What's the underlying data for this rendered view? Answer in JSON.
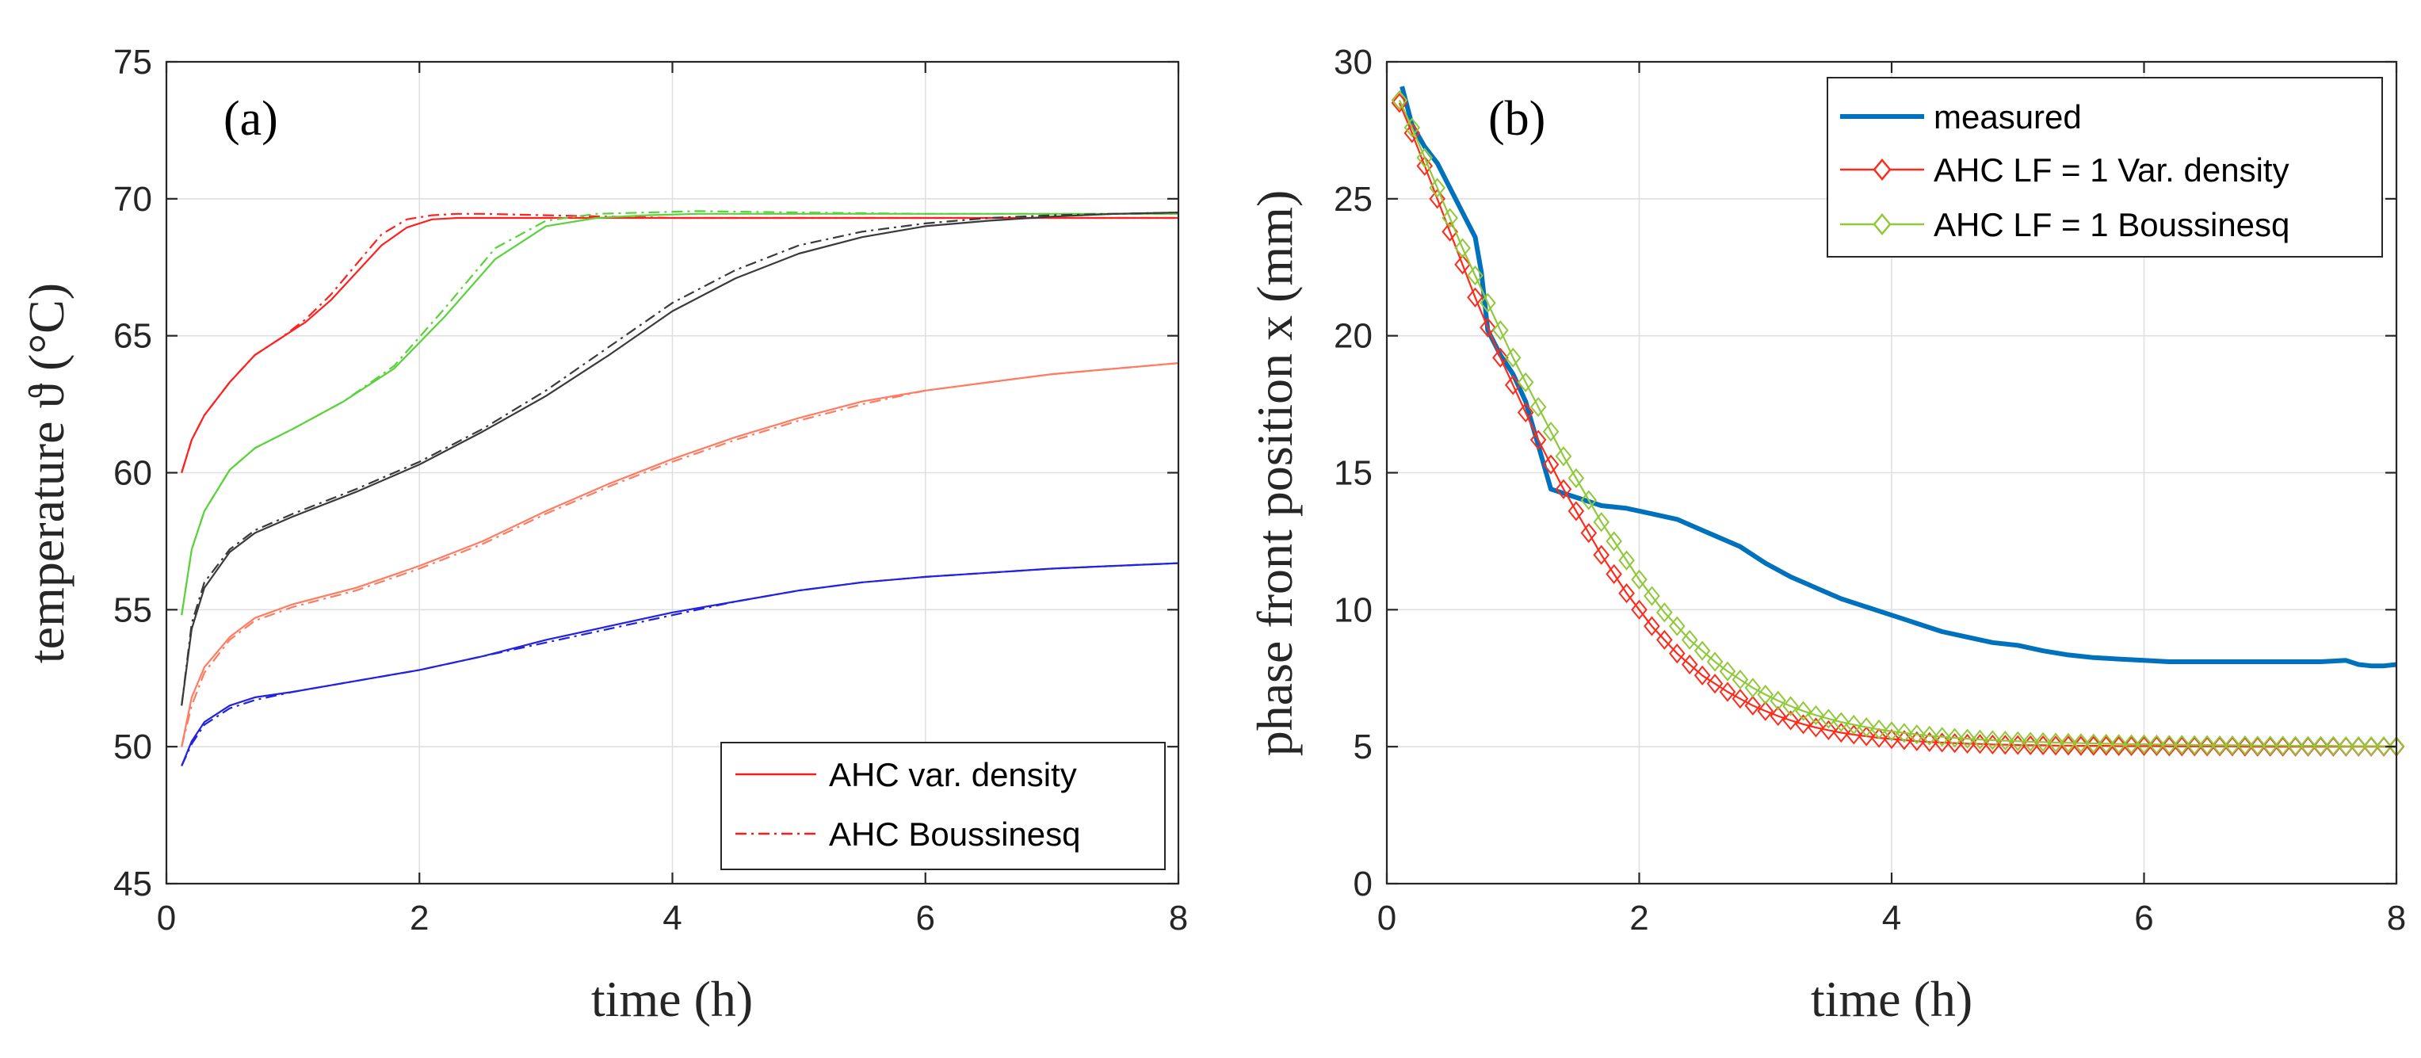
{
  "chart_data": [
    {
      "type": "line",
      "panel_label": "(a)",
      "xlabel": "time (h)",
      "ylabel": "temperature ϑ (°C)",
      "xlim": [
        0,
        8
      ],
      "ylim": [
        45,
        75
      ],
      "xticks": [
        0,
        2,
        4,
        6,
        8
      ],
      "yticks": [
        45,
        50,
        55,
        60,
        65,
        70,
        75
      ],
      "grid": true,
      "legend_position": "bottom-right",
      "legend": [
        {
          "label": "AHC var. density",
          "color": "#ff1a1a",
          "style": "solid"
        },
        {
          "label": "AHC Boussinesq",
          "color": "#ff1a1a",
          "style": "dashdot"
        }
      ],
      "series": [
        {
          "name": "red var. density",
          "color": "#ff2020",
          "style": "solid",
          "x": [
            0.12,
            0.2,
            0.3,
            0.5,
            0.7,
            0.9,
            1.1,
            1.3,
            1.5,
            1.7,
            1.9,
            2.1,
            2.3,
            2.5,
            3,
            4,
            5,
            6,
            7,
            8
          ],
          "y": [
            60,
            61.2,
            62.1,
            63.3,
            64.3,
            64.9,
            65.5,
            66.3,
            67.3,
            68.3,
            68.95,
            69.25,
            69.3,
            69.3,
            69.3,
            69.3,
            69.3,
            69.3,
            69.3,
            69.3
          ]
        },
        {
          "name": "red Boussinesq",
          "color": "#ff2020",
          "style": "dashdot",
          "x": [
            0.12,
            0.2,
            0.3,
            0.5,
            0.7,
            0.9,
            1.1,
            1.3,
            1.5,
            1.7,
            1.9,
            2.1,
            2.3,
            2.5,
            3,
            4,
            5,
            6,
            7,
            8
          ],
          "y": [
            60,
            61.2,
            62.1,
            63.3,
            64.3,
            64.9,
            65.6,
            66.5,
            67.6,
            68.7,
            69.25,
            69.4,
            69.45,
            69.45,
            69.4,
            69.3,
            69.3,
            69.3,
            69.3,
            69.3
          ]
        },
        {
          "name": "green var. density",
          "color": "#5ad23c",
          "style": "solid",
          "x": [
            0.12,
            0.2,
            0.3,
            0.5,
            0.7,
            1,
            1.4,
            1.8,
            2.2,
            2.6,
            3,
            3.4,
            3.8,
            4.2,
            5,
            6,
            7,
            8
          ],
          "y": [
            54.8,
            57.2,
            58.6,
            60.1,
            60.9,
            61.6,
            62.6,
            63.8,
            65.7,
            67.8,
            69,
            69.3,
            69.4,
            69.45,
            69.45,
            69.45,
            69.45,
            69.45
          ]
        },
        {
          "name": "green Boussinesq",
          "color": "#5ad23c",
          "style": "dashdot",
          "x": [
            0.12,
            0.2,
            0.3,
            0.5,
            0.7,
            1,
            1.4,
            1.8,
            2.2,
            2.6,
            3,
            3.4,
            3.8,
            4.2,
            5,
            6,
            7,
            8
          ],
          "y": [
            54.8,
            57.2,
            58.6,
            60.1,
            60.9,
            61.6,
            62.6,
            63.9,
            66,
            68.2,
            69.2,
            69.45,
            69.5,
            69.55,
            69.5,
            69.45,
            69.45,
            69.45
          ]
        },
        {
          "name": "black var. density",
          "color": "#3a3a3a",
          "style": "solid",
          "x": [
            0.12,
            0.2,
            0.3,
            0.5,
            0.7,
            1,
            1.5,
            2,
            2.5,
            3,
            3.5,
            4,
            4.5,
            5,
            5.5,
            6,
            6.5,
            7,
            7.5,
            8
          ],
          "y": [
            51.5,
            54.3,
            55.8,
            57.1,
            57.8,
            58.4,
            59.3,
            60.3,
            61.5,
            62.8,
            64.3,
            65.9,
            67.1,
            68,
            68.6,
            69,
            69.2,
            69.35,
            69.45,
            69.5
          ]
        },
        {
          "name": "black Boussinesq",
          "color": "#3a3a3a",
          "style": "dashdot",
          "x": [
            0.12,
            0.2,
            0.3,
            0.5,
            0.7,
            1,
            1.5,
            2,
            2.5,
            3,
            3.5,
            4,
            4.5,
            5,
            5.5,
            6,
            6.5,
            7,
            7.5,
            8
          ],
          "y": [
            51.5,
            54.5,
            56,
            57.2,
            57.9,
            58.5,
            59.4,
            60.4,
            61.6,
            63,
            64.6,
            66.2,
            67.4,
            68.3,
            68.8,
            69.1,
            69.3,
            69.4,
            69.45,
            69.5
          ]
        },
        {
          "name": "salmon var. density",
          "color": "#ff7b61",
          "style": "solid",
          "x": [
            0.12,
            0.2,
            0.3,
            0.5,
            0.7,
            1,
            1.5,
            2,
            2.5,
            3,
            3.5,
            4,
            4.5,
            5,
            5.5,
            6,
            6.5,
            7,
            7.5,
            8
          ],
          "y": [
            50,
            51.8,
            52.9,
            54,
            54.7,
            55.2,
            55.8,
            56.6,
            57.5,
            58.6,
            59.6,
            60.5,
            61.3,
            62,
            62.6,
            63,
            63.3,
            63.6,
            63.8,
            64
          ]
        },
        {
          "name": "salmon Boussinesq",
          "color": "#ff7b61",
          "style": "dashdot",
          "x": [
            0.12,
            0.2,
            0.3,
            0.5,
            0.7,
            1,
            1.5,
            2,
            2.5,
            3,
            3.5,
            4,
            4.5,
            5,
            5.5,
            6,
            6.5,
            7,
            7.5,
            8
          ],
          "y": [
            50,
            51.5,
            52.7,
            53.9,
            54.6,
            55.1,
            55.7,
            56.5,
            57.4,
            58.5,
            59.5,
            60.4,
            61.2,
            61.9,
            62.5,
            63,
            63.3,
            63.6,
            63.8,
            64
          ]
        },
        {
          "name": "blue var. density",
          "color": "#2222e0",
          "style": "solid",
          "x": [
            0.12,
            0.2,
            0.3,
            0.5,
            0.7,
            1,
            1.5,
            2,
            2.5,
            3,
            3.5,
            4,
            4.5,
            5,
            5.5,
            6,
            6.5,
            7,
            7.5,
            8
          ],
          "y": [
            49.3,
            50.2,
            50.9,
            51.5,
            51.8,
            52,
            52.4,
            52.8,
            53.3,
            53.9,
            54.4,
            54.9,
            55.3,
            55.7,
            56,
            56.2,
            56.35,
            56.5,
            56.6,
            56.7
          ]
        },
        {
          "name": "blue Boussinesq",
          "color": "#2222e0",
          "style": "dashdot",
          "x": [
            0.12,
            0.2,
            0.3,
            0.5,
            0.7,
            1,
            1.5,
            2,
            2.5,
            3,
            3.5,
            4,
            4.5,
            5,
            5.5,
            6,
            6.5,
            7,
            7.5,
            8
          ],
          "y": [
            49.3,
            50.1,
            50.8,
            51.4,
            51.7,
            52,
            52.4,
            52.8,
            53.3,
            53.8,
            54.3,
            54.8,
            55.3,
            55.7,
            56,
            56.2,
            56.35,
            56.5,
            56.6,
            56.7
          ]
        }
      ]
    },
    {
      "type": "line",
      "panel_label": "(b)",
      "xlabel": "time (h)",
      "ylabel": "phase front position x (mm)",
      "xlim": [
        0,
        8
      ],
      "ylim": [
        0,
        30
      ],
      "xticks": [
        0,
        2,
        4,
        6,
        8
      ],
      "yticks": [
        0,
        5,
        10,
        15,
        20,
        25,
        30
      ],
      "grid": true,
      "legend_position": "top-right",
      "legend": [
        {
          "label": "measured",
          "color": "#0072bd",
          "style": "solid-thick"
        },
        {
          "label": "AHC LF = 1 Var. density",
          "color": "#ff2a1a",
          "style": "diamond"
        },
        {
          "label": "AHC LF = 1 Boussinesq",
          "color": "#8fc93a",
          "style": "diamond"
        }
      ],
      "series": [
        {
          "name": "measured",
          "color": "#0072bd",
          "style": "solid-thick",
          "x": [
            0.12,
            0.2,
            0.3,
            0.4,
            0.5,
            0.6,
            0.7,
            0.75,
            0.8,
            0.9,
            1,
            1.1,
            1.2,
            1.3,
            1.5,
            1.7,
            1.9,
            2.1,
            2.3,
            2.5,
            2.7,
            2.8,
            3,
            3.2,
            3.4,
            3.6,
            3.8,
            4,
            4.2,
            4.4,
            4.6,
            4.8,
            5,
            5.2,
            5.4,
            5.6,
            5.8,
            6,
            6.2,
            6.4,
            6.6,
            6.8,
            7,
            7.2,
            7.4,
            7.6,
            7.7,
            7.8,
            7.9,
            8
          ],
          "y": [
            29.1,
            27.7,
            26.9,
            26.3,
            25.4,
            24.5,
            23.6,
            22.3,
            20.2,
            19.3,
            18.6,
            17.6,
            16,
            14.4,
            14.1,
            13.8,
            13.7,
            13.5,
            13.3,
            12.9,
            12.5,
            12.3,
            11.7,
            11.2,
            10.8,
            10.4,
            10.1,
            9.8,
            9.5,
            9.2,
            9,
            8.8,
            8.7,
            8.5,
            8.35,
            8.25,
            8.2,
            8.15,
            8.1,
            8.1,
            8.1,
            8.1,
            8.1,
            8.1,
            8.1,
            8.15,
            8,
            7.95,
            7.95,
            8
          ]
        },
        {
          "name": "AHC LF = 1 Var. density",
          "color": "#ff2a1a",
          "style": "diamond",
          "x": [
            0.1,
            0.2,
            0.3,
            0.4,
            0.5,
            0.6,
            0.7,
            0.8,
            0.9,
            1,
            1.1,
            1.2,
            1.3,
            1.4,
            1.5,
            1.6,
            1.7,
            1.8,
            1.9,
            2,
            2.1,
            2.2,
            2.3,
            2.4,
            2.5,
            2.6,
            2.7,
            2.8,
            2.9,
            3,
            3.1,
            3.2,
            3.3,
            3.4,
            3.5,
            3.6,
            3.7,
            3.8,
            3.9,
            4,
            4.1,
            4.2,
            4.3,
            4.4,
            4.5,
            4.6,
            4.7,
            4.8,
            4.9,
            5,
            5.1,
            5.2,
            5.3,
            5.4,
            5.5,
            5.6,
            5.7,
            5.8,
            5.9,
            6,
            6.1,
            6.2,
            6.3,
            6.4,
            6.5,
            6.6,
            6.7,
            6.8,
            6.9,
            7,
            7.1,
            7.2,
            7.3,
            7.4,
            7.5,
            7.6,
            7.7,
            7.8,
            7.9,
            8
          ],
          "y": [
            28.5,
            27.4,
            26.2,
            25,
            23.8,
            22.6,
            21.4,
            20.3,
            19.2,
            18.2,
            17.2,
            16.2,
            15.3,
            14.4,
            13.6,
            12.8,
            12,
            11.3,
            10.6,
            10,
            9.4,
            8.9,
            8.4,
            8,
            7.6,
            7.3,
            7,
            6.75,
            6.5,
            6.3,
            6.12,
            5.96,
            5.82,
            5.7,
            5.6,
            5.51,
            5.44,
            5.38,
            5.32,
            5.28,
            5.24,
            5.2,
            5.17,
            5.15,
            5.13,
            5.11,
            5.1,
            5.08,
            5.07,
            5.06,
            5.05,
            5.05,
            5.04,
            5.04,
            5.03,
            5.03,
            5.03,
            5.02,
            5.02,
            5.02,
            5.02,
            5.01,
            5.01,
            5.01,
            5.01,
            5.01,
            5.01,
            5,
            5,
            5,
            5,
            5,
            5,
            5,
            5,
            5,
            5,
            5,
            5,
            5
          ]
        },
        {
          "name": "AHC LF = 1 Boussinesq",
          "color": "#8fc93a",
          "style": "diamond",
          "x": [
            0.1,
            0.2,
            0.3,
            0.4,
            0.5,
            0.6,
            0.7,
            0.8,
            0.9,
            1,
            1.1,
            1.2,
            1.3,
            1.4,
            1.5,
            1.6,
            1.7,
            1.8,
            1.9,
            2,
            2.1,
            2.2,
            2.3,
            2.4,
            2.5,
            2.6,
            2.7,
            2.8,
            2.9,
            3,
            3.1,
            3.2,
            3.3,
            3.4,
            3.5,
            3.6,
            3.7,
            3.8,
            3.9,
            4,
            4.1,
            4.2,
            4.3,
            4.4,
            4.5,
            4.6,
            4.7,
            4.8,
            4.9,
            5,
            5.1,
            5.2,
            5.3,
            5.4,
            5.5,
            5.6,
            5.7,
            5.8,
            5.9,
            6,
            6.1,
            6.2,
            6.3,
            6.4,
            6.5,
            6.6,
            6.7,
            6.8,
            6.9,
            7,
            7.1,
            7.2,
            7.3,
            7.4,
            7.5,
            7.6,
            7.7,
            7.8,
            7.9,
            8
          ],
          "y": [
            28.6,
            27.6,
            26.5,
            25.4,
            24.3,
            23.2,
            22.2,
            21.2,
            20.2,
            19.2,
            18.3,
            17.4,
            16.5,
            15.6,
            14.8,
            14,
            13.2,
            12.5,
            11.8,
            11.1,
            10.5,
            9.9,
            9.4,
            8.9,
            8.5,
            8.1,
            7.75,
            7.45,
            7.15,
            6.9,
            6.68,
            6.48,
            6.3,
            6.15,
            6.02,
            5.9,
            5.8,
            5.71,
            5.63,
            5.56,
            5.5,
            5.45,
            5.4,
            5.36,
            5.32,
            5.29,
            5.26,
            5.24,
            5.22,
            5.2,
            5.18,
            5.17,
            5.15,
            5.14,
            5.13,
            5.12,
            5.11,
            5.1,
            5.09,
            5.09,
            5.08,
            5.07,
            5.07,
            5.06,
            5.06,
            5.05,
            5.05,
            5.05,
            5.04,
            5.04,
            5.04,
            5.03,
            5.03,
            5.03,
            5.03,
            5.02,
            5.02,
            5.02,
            5.02,
            5.02
          ]
        }
      ]
    }
  ]
}
